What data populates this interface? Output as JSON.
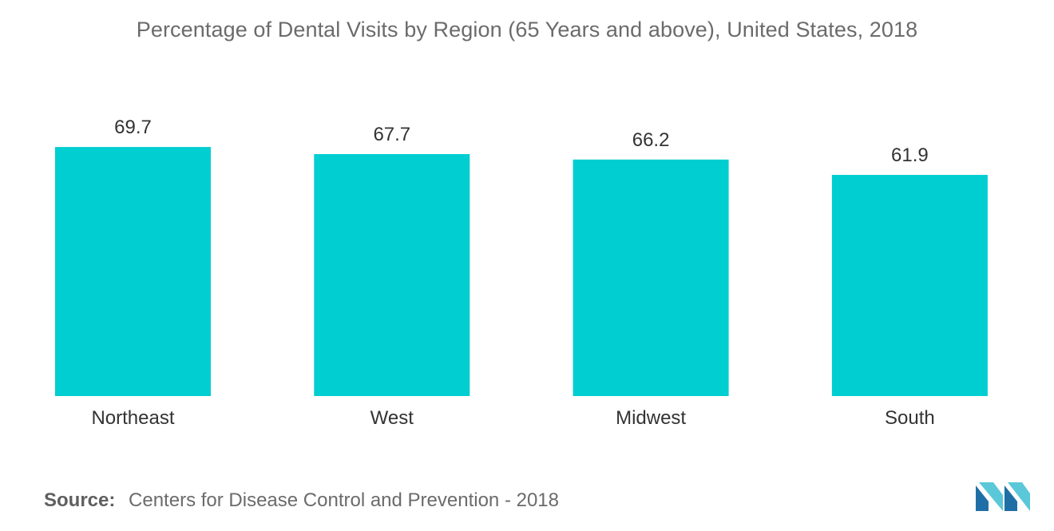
{
  "colors": {
    "bar": "#00CED1",
    "logo_dark": "#1f6fa6",
    "logo_light": "#5ac8d8"
  },
  "chart_data": {
    "type": "bar",
    "title": "Percentage of Dental Visits by Region (65 Years and above), United States, 2018",
    "categories": [
      "Northeast",
      "West",
      "Midwest",
      "South"
    ],
    "values": [
      69.7,
      67.7,
      66.2,
      61.9
    ],
    "value_labels": [
      "69.7",
      "67.7",
      "66.2",
      "61.9"
    ],
    "xlabel": "",
    "ylabel": "",
    "ylim": [
      0,
      69.7
    ],
    "grid": false,
    "legend": "none"
  },
  "source": {
    "label": "Source:",
    "text": "Centers for Disease Control and Prevention - 2018"
  },
  "logo": {
    "icon": "mordor-intelligence-logo-icon"
  }
}
